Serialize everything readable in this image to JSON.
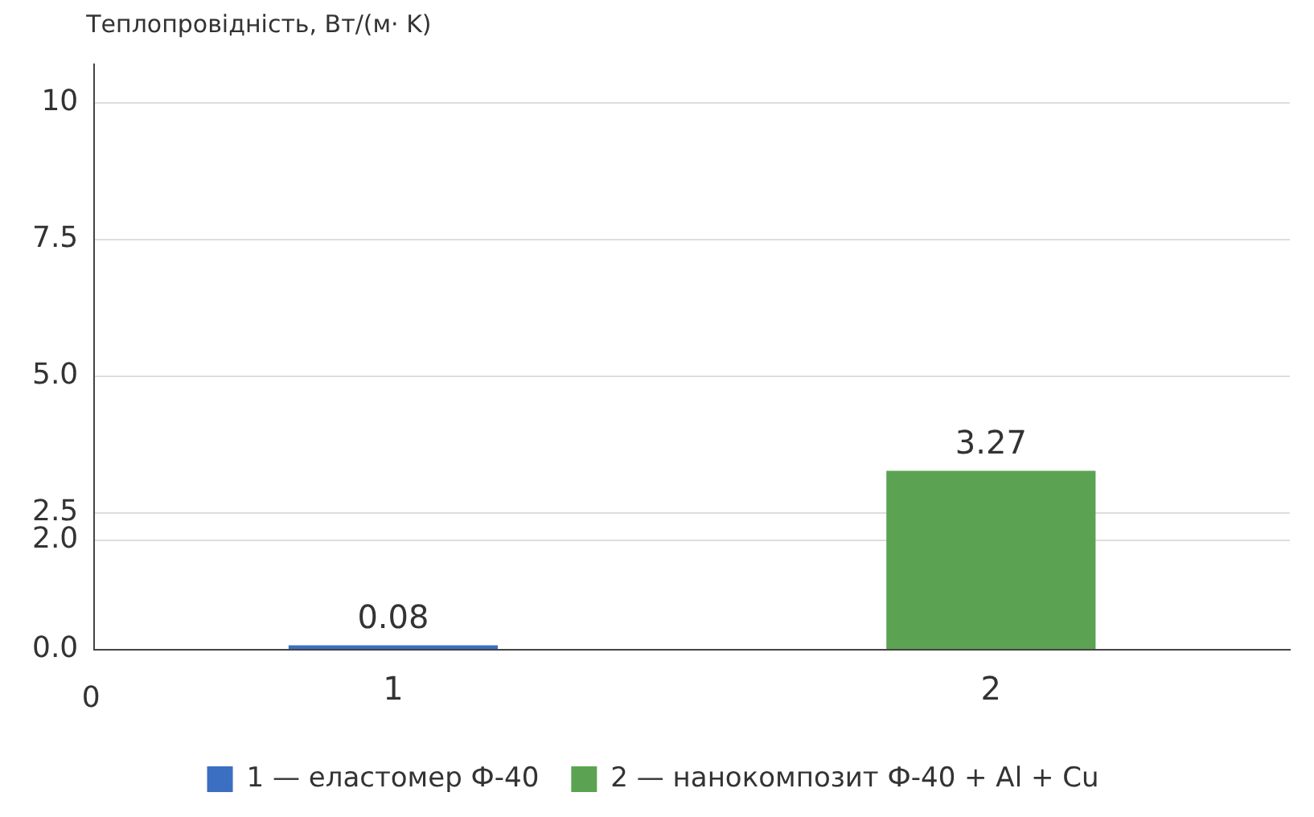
{
  "chart_data": {
    "type": "bar",
    "ylabel": "Теплопровідність, Вт/(м· K)",
    "categories": [
      "1",
      "2"
    ],
    "series": [
      {
        "name": "1 — еластомер Ф-40",
        "color": "#3b6fc1",
        "values": [
          0.08,
          null
        ]
      },
      {
        "name": "2 — нанокомпозит Ф-40 + Al + Cu",
        "color": "#5ba352",
        "values": [
          null,
          3.27
        ]
      }
    ],
    "ylim": [
      0,
      10.7
    ],
    "yticks": [
      {
        "value": 0,
        "label": "0.0"
      },
      {
        "value": 2,
        "label": "2.0"
      },
      {
        "value": 2.5,
        "label": "2.5"
      },
      {
        "value": 5,
        "label": "5.0"
      },
      {
        "value": 7.5,
        "label": "7.5"
      },
      10
    ],
    "annotations": [
      "0"
    ],
    "data_labels": true,
    "grid": "y",
    "legend": "bottom"
  }
}
